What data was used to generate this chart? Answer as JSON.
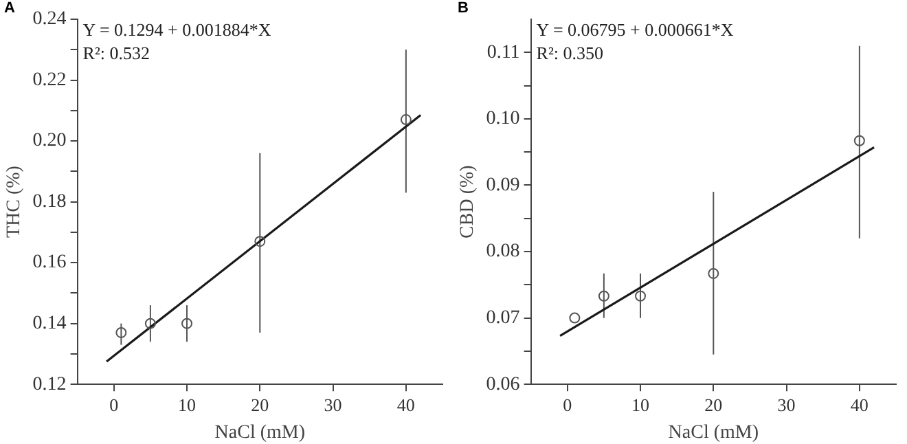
{
  "chart_data": [
    {
      "type": "scatter",
      "title": "A",
      "xlabel": "NaCl (mM)",
      "ylabel": "THC (%)",
      "marker": "circle",
      "grid": false,
      "legend": false,
      "annotations": [
        "Y = 0.1294 + 0.001884*X",
        "R²: 0.532"
      ],
      "xlim": [
        -5,
        45
      ],
      "xticks": [
        0,
        10,
        20,
        30,
        40
      ],
      "ylim": [
        0.12,
        0.24
      ],
      "yticks": [
        {
          "value": 0.12,
          "label": "0.12"
        },
        {
          "value": 0.13,
          "label": null
        },
        {
          "value": 0.14,
          "label": "0.14"
        },
        {
          "value": 0.15,
          "label": null
        },
        {
          "value": 0.16,
          "label": "0.16"
        },
        {
          "value": 0.17,
          "label": null
        },
        {
          "value": 0.18,
          "label": "0.18"
        },
        {
          "value": 0.19,
          "label": null
        },
        {
          "value": 0.2,
          "label": "0.20"
        },
        {
          "value": 0.21,
          "label": null
        },
        {
          "value": 0.22,
          "label": "0.22"
        },
        {
          "value": 0.23,
          "label": null
        },
        {
          "value": 0.24,
          "label": "0.24"
        }
      ],
      "series": [
        {
          "color": "#555555",
          "x": [
            1,
            5,
            10,
            20,
            40
          ],
          "values": [
            0.137,
            0.14,
            0.14,
            0.167,
            0.207
          ],
          "errors": [
            [
              0.133,
              0.14
            ],
            [
              0.134,
              0.146
            ],
            [
              0.134,
              0.146
            ],
            [
              0.137,
              0.196
            ],
            [
              0.183,
              0.23
            ]
          ]
        },
        {
          "type": "line",
          "color": "#1a1a1a",
          "marker": "none",
          "x": [
            -1,
            42
          ],
          "values": [
            0.1275,
            0.2085
          ]
        }
      ]
    },
    {
      "type": "scatter",
      "title": "B",
      "xlabel": "NaCl (mM)",
      "ylabel": "CBD (%)",
      "marker": "circle",
      "grid": false,
      "legend": false,
      "annotations": [
        "Y = 0.06795 + 0.000661*X",
        "R²: 0.350"
      ],
      "xlim": [
        -5,
        45
      ],
      "xticks": [
        0,
        10,
        20,
        30,
        40
      ],
      "ylim": [
        0.06,
        0.115
      ],
      "yticks": [
        {
          "value": 0.06,
          "label": "0.06"
        },
        {
          "value": 0.065,
          "label": null
        },
        {
          "value": 0.07,
          "label": "0.07"
        },
        {
          "value": 0.075,
          "label": null
        },
        {
          "value": 0.08,
          "label": "0.08"
        },
        {
          "value": 0.085,
          "label": null
        },
        {
          "value": 0.09,
          "label": "0.09"
        },
        {
          "value": 0.095,
          "label": null
        },
        {
          "value": 0.1,
          "label": "0.10"
        },
        {
          "value": 0.105,
          "label": null
        },
        {
          "value": 0.11,
          "label": "0.11"
        }
      ],
      "series": [
        {
          "color": "#555555",
          "x": [
            1,
            5,
            10,
            20,
            40
          ],
          "values": [
            0.07,
            0.0733,
            0.0733,
            0.0767,
            0.0967
          ],
          "errors": [
            null,
            [
              0.07,
              0.0767
            ],
            [
              0.07,
              0.0767
            ],
            [
              0.0645,
              0.089
            ],
            [
              0.082,
              0.111
            ]
          ]
        },
        {
          "type": "line",
          "color": "#1a1a1a",
          "marker": "none",
          "x": [
            -1,
            42
          ],
          "values": [
            0.0673,
            0.0957
          ]
        }
      ]
    }
  ]
}
